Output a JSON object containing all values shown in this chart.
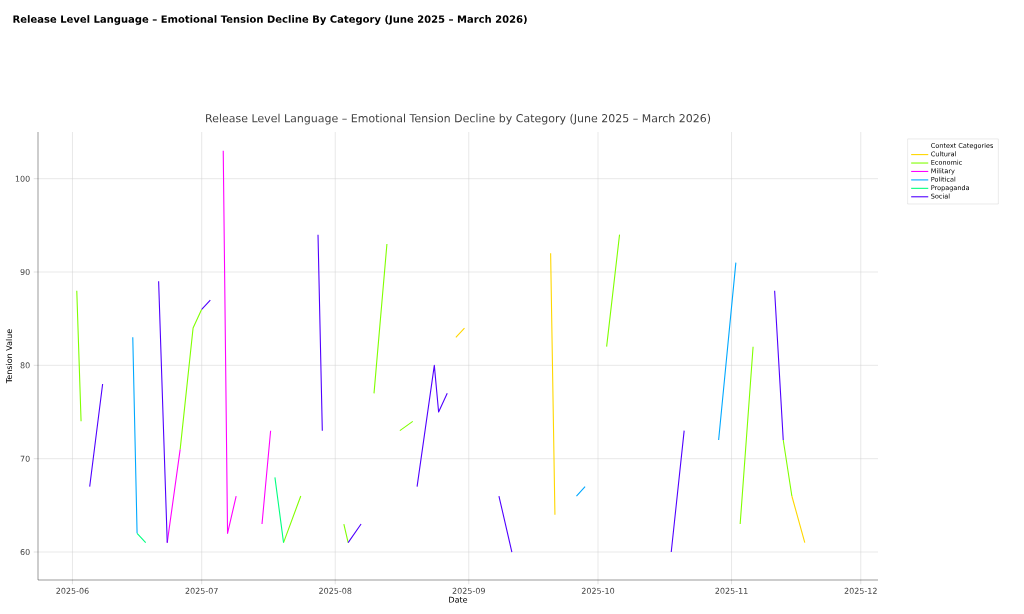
{
  "chart_data": {
    "type": "line",
    "title": "Release Level Language – Emotional Tension Decline by Category (June 2025 – March 2026)",
    "annotations": [
      "Release Level Language – Emotional Tension Decline By Category (June 2025 – March 2026)"
    ],
    "xlabel": "Date",
    "ylabel": "Tension Value",
    "legend_title": "Context Categories",
    "xlim": [
      "2025-05-24",
      "2025-12-05"
    ],
    "ylim": [
      57,
      105
    ],
    "xticks": [
      "2025-06",
      "2025-07",
      "2025-08",
      "2025-09",
      "2025-10",
      "2025-11",
      "2025-12"
    ],
    "yticks": [
      60,
      70,
      80,
      90,
      100
    ],
    "grid": true,
    "legend": "top right",
    "marker": "none",
    "line_style": "solid",
    "series": [
      {
        "name": "Cultural",
        "color": "#ffd700",
        "x": [
          "2025-08-29",
          "2025-08-31",
          "2025-09-10",
          "2025-09-20",
          "2025-09-21",
          "2025-10-20",
          "2025-11-15",
          "2025-11-18"
        ],
        "values": [
          83,
          84,
          null,
          92,
          64,
          null,
          66,
          61
        ]
      },
      {
        "name": "Economic",
        "color": "#80ff00",
        "x": [
          "2025-06-02",
          "2025-06-03",
          "2025-06-15",
          "2025-06-26",
          "2025-06-29",
          "2025-07-01",
          "2025-07-10",
          "2025-07-20",
          "2025-07-24",
          "2025-07-30",
          "2025-08-03",
          "2025-08-04",
          "2025-08-07",
          "2025-08-10",
          "2025-08-13",
          "2025-08-14",
          "2025-08-16",
          "2025-08-19",
          "2025-09-10",
          "2025-10-03",
          "2025-10-06",
          "2025-10-20",
          "2025-11-03",
          "2025-11-06",
          "2025-11-09",
          "2025-11-13",
          "2025-11-15"
        ],
        "values": [
          88,
          74,
          null,
          71,
          84,
          86,
          null,
          61,
          66,
          null,
          63,
          61,
          null,
          77,
          93,
          null,
          73,
          74,
          null,
          82,
          94,
          null,
          63,
          82,
          null,
          72,
          66
        ]
      },
      {
        "name": "Military",
        "color": "#ff00ff",
        "x": [
          "2025-06-23",
          "2025-06-26",
          "2025-07-01",
          "2025-07-06",
          "2025-07-07",
          "2025-07-09",
          "2025-07-12",
          "2025-07-15",
          "2025-07-17"
        ],
        "values": [
          61,
          71,
          null,
          103,
          62,
          66,
          null,
          63,
          73
        ]
      },
      {
        "name": "Political",
        "color": "#00a8ff",
        "x": [
          "2025-06-15",
          "2025-06-16",
          "2025-08-01",
          "2025-09-26",
          "2025-09-28",
          "2025-10-15",
          "2025-10-29",
          "2025-11-02"
        ],
        "values": [
          83,
          62,
          null,
          66,
          67,
          null,
          72,
          91
        ]
      },
      {
        "name": "Propaganda",
        "color": "#00ff80",
        "x": [
          "2025-06-16",
          "2025-06-18",
          "2025-07-01",
          "2025-07-18",
          "2025-07-20"
        ],
        "values": [
          62,
          61,
          null,
          68,
          61
        ]
      },
      {
        "name": "Social",
        "color": "#5000ff",
        "x": [
          "2025-06-05",
          "2025-06-08",
          "2025-06-15",
          "2025-06-21",
          "2025-06-23",
          "2025-06-27",
          "2025-07-01",
          "2025-07-03",
          "2025-07-20",
          "2025-07-28",
          "2025-07-29",
          "2025-08-01",
          "2025-08-04",
          "2025-08-07",
          "2025-08-15",
          "2025-08-20",
          "2025-08-24",
          "2025-08-25",
          "2025-08-27",
          "2025-09-01",
          "2025-09-08",
          "2025-09-11",
          "2025-10-01",
          "2025-10-18",
          "2025-10-21",
          "2025-11-01",
          "2025-11-11",
          "2025-11-13"
        ],
        "values": [
          67,
          78,
          null,
          89,
          61,
          null,
          86,
          87,
          null,
          94,
          73,
          null,
          61,
          63,
          null,
          67,
          80,
          75,
          77,
          null,
          66,
          60,
          null,
          60,
          73,
          null,
          88,
          72
        ]
      }
    ]
  }
}
